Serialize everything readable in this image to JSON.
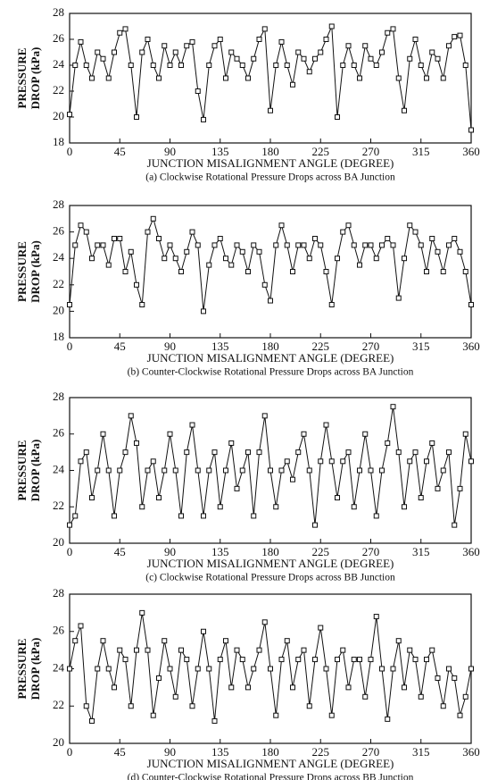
{
  "chart_data": [
    {
      "type": "line",
      "xlabel": "JUNCTION MISALIGNMENT ANGLE (DEGREE)",
      "ylabel": [
        "PRESSURE",
        "DROP (kPa)"
      ],
      "caption": "(a) Clockwise Rotational Pressure Drops across BA Junction",
      "xlim": [
        0,
        360
      ],
      "xticks": [
        0,
        45,
        90,
        135,
        180,
        225,
        270,
        315,
        360
      ],
      "ylim": [
        18,
        28
      ],
      "yticks": [
        18,
        20,
        22,
        24,
        26,
        28
      ],
      "x": [
        0,
        5,
        10,
        15,
        20,
        25,
        30,
        35,
        40,
        45,
        50,
        55,
        60,
        65,
        70,
        75,
        80,
        85,
        90,
        95,
        100,
        105,
        110,
        115,
        120,
        125,
        130,
        135,
        140,
        145,
        150,
        155,
        160,
        165,
        170,
        175,
        180,
        185,
        190,
        195,
        200,
        205,
        210,
        215,
        220,
        225,
        230,
        235,
        240,
        245,
        250,
        255,
        260,
        265,
        270,
        275,
        280,
        285,
        290,
        295,
        300,
        305,
        310,
        315,
        320,
        325,
        330,
        335,
        340,
        345,
        350,
        355,
        360
      ],
      "values": [
        20.2,
        24,
        25.8,
        24,
        23,
        25,
        24.5,
        23,
        25,
        26.5,
        26.8,
        24,
        20,
        25,
        26,
        24,
        23,
        25.5,
        24,
        25,
        24,
        25.5,
        25.8,
        22,
        19.8,
        24,
        25.5,
        26,
        23,
        25,
        24.5,
        24,
        23,
        24.5,
        26,
        26.8,
        20.5,
        24,
        25.8,
        24,
        22.5,
        25,
        24.5,
        23.5,
        24.5,
        25,
        26,
        27,
        20,
        24,
        25.5,
        24,
        23,
        25.5,
        24.5,
        24,
        25,
        26.5,
        26.8,
        23,
        20.5,
        24.5,
        26,
        24,
        23,
        25,
        24.5,
        23,
        25.5,
        26.2,
        26.3,
        24,
        19
      ],
      "color": "#111111"
    },
    {
      "type": "line",
      "xlabel": "JUNCTION MISALIGNMENT ANGLE (DEGREE)",
      "ylabel": [
        "PRESSURE",
        "DROP (kPa)"
      ],
      "caption": "(b) Counter-Clockwise  Rotational Pressure Drops across BA Junction",
      "xlim": [
        0,
        360
      ],
      "xticks": [
        0,
        45,
        90,
        135,
        180,
        225,
        270,
        315,
        360
      ],
      "ylim": [
        18,
        28
      ],
      "yticks": [
        18,
        20,
        22,
        24,
        26,
        28
      ],
      "x": [
        0,
        5,
        10,
        15,
        20,
        25,
        30,
        35,
        40,
        45,
        50,
        55,
        60,
        65,
        70,
        75,
        80,
        85,
        90,
        95,
        100,
        105,
        110,
        115,
        120,
        125,
        130,
        135,
        140,
        145,
        150,
        155,
        160,
        165,
        170,
        175,
        180,
        185,
        190,
        195,
        200,
        205,
        210,
        215,
        220,
        225,
        230,
        235,
        240,
        245,
        250,
        255,
        260,
        265,
        270,
        275,
        280,
        285,
        290,
        295,
        300,
        305,
        310,
        315,
        320,
        325,
        330,
        335,
        340,
        345,
        350,
        355,
        360
      ],
      "values": [
        20.5,
        25,
        26.5,
        26,
        24,
        25,
        25,
        23.5,
        25.5,
        25.5,
        23,
        24.5,
        22,
        20.5,
        26,
        27,
        25.5,
        24,
        25,
        24,
        23,
        24.5,
        26,
        25,
        20,
        23.5,
        25,
        25.5,
        24,
        23.5,
        25,
        24.5,
        23,
        25,
        24.5,
        22,
        20.8,
        25,
        26.5,
        25,
        23,
        25,
        25,
        24,
        25.5,
        25,
        23,
        20.5,
        24,
        26,
        26.5,
        25,
        23.5,
        25,
        25,
        24,
        25,
        25.5,
        25,
        21,
        24,
        26.5,
        26,
        25,
        23,
        25.5,
        24.5,
        23,
        25,
        25.5,
        24.5,
        23,
        20.5
      ],
      "color": "#111111"
    },
    {
      "type": "line",
      "xlabel": "JUNCTION MISALIGNMENT ANGLE (DEGREE)",
      "ylabel": [
        "PRESSURE",
        "DROP (kPa)"
      ],
      "caption": "(c) Clockwise Rotational Pressure Drops across BB Junction",
      "xlim": [
        0,
        360
      ],
      "xticks": [
        0,
        45,
        90,
        135,
        180,
        225,
        270,
        315,
        360
      ],
      "ylim": [
        20,
        28
      ],
      "yticks": [
        20,
        22,
        24,
        26,
        28
      ],
      "x": [
        0,
        5,
        10,
        15,
        20,
        25,
        30,
        35,
        40,
        45,
        50,
        55,
        60,
        65,
        70,
        75,
        80,
        85,
        90,
        95,
        100,
        105,
        110,
        115,
        120,
        125,
        130,
        135,
        140,
        145,
        150,
        155,
        160,
        165,
        170,
        175,
        180,
        185,
        190,
        195,
        200,
        205,
        210,
        215,
        220,
        225,
        230,
        235,
        240,
        245,
        250,
        255,
        260,
        265,
        270,
        275,
        280,
        285,
        290,
        295,
        300,
        305,
        310,
        315,
        320,
        325,
        330,
        335,
        340,
        345,
        350,
        355,
        360
      ],
      "values": [
        21,
        21.5,
        24.5,
        25,
        22.5,
        24,
        26,
        24,
        21.5,
        24,
        25,
        27,
        25.5,
        22,
        24,
        24.5,
        22.5,
        24,
        26,
        24,
        21.5,
        25,
        26.5,
        24,
        21.5,
        24,
        25,
        22,
        24,
        25.5,
        23,
        24,
        25,
        21.5,
        25,
        27,
        24,
        22,
        24,
        24.5,
        23.5,
        25,
        26,
        24,
        21,
        24.5,
        26.5,
        24.5,
        22.5,
        24.5,
        25,
        22,
        24,
        26,
        24,
        21.5,
        24,
        25.5,
        27.5,
        25,
        22,
        24.5,
        25,
        22.5,
        24.5,
        25.5,
        23,
        24,
        25,
        21,
        23,
        26,
        24.5
      ],
      "color": "#111111"
    },
    {
      "type": "line",
      "xlabel": "JUNCTION MISALIGNMENT ANGLE (DEGREE)",
      "ylabel": [
        "PRESSURE",
        "DROP (kPa)"
      ],
      "caption": "(d) Counter-Clockwise Rotational Pressure Drops across BB Junction",
      "xlim": [
        0,
        360
      ],
      "xticks": [
        0,
        45,
        90,
        135,
        180,
        225,
        270,
        315,
        360
      ],
      "ylim": [
        20,
        28
      ],
      "yticks": [
        20,
        22,
        24,
        26,
        28
      ],
      "x": [
        0,
        5,
        10,
        15,
        20,
        25,
        30,
        35,
        40,
        45,
        50,
        55,
        60,
        65,
        70,
        75,
        80,
        85,
        90,
        95,
        100,
        105,
        110,
        115,
        120,
        125,
        130,
        135,
        140,
        145,
        150,
        155,
        160,
        165,
        170,
        175,
        180,
        185,
        190,
        195,
        200,
        205,
        210,
        215,
        220,
        225,
        230,
        235,
        240,
        245,
        250,
        255,
        260,
        265,
        270,
        275,
        280,
        285,
        290,
        295,
        300,
        305,
        310,
        315,
        320,
        325,
        330,
        335,
        340,
        345,
        350,
        355,
        360
      ],
      "values": [
        24,
        25.5,
        26.3,
        22,
        21.2,
        24,
        25.5,
        24,
        23,
        25,
        24.5,
        22,
        25,
        27,
        25,
        21.5,
        23.5,
        25.5,
        24,
        22.5,
        25,
        24.5,
        22,
        24,
        26,
        24,
        21.2,
        24.5,
        25.5,
        23,
        25,
        24.5,
        23,
        24,
        25,
        26.5,
        24,
        21.5,
        24.5,
        25.5,
        23,
        24.5,
        25,
        22,
        24.5,
        26.2,
        24,
        21.5,
        24.5,
        25,
        23,
        24.5,
        24.5,
        22.5,
        24.5,
        26.8,
        24,
        21.3,
        24,
        25.5,
        23,
        25,
        24.5,
        22.5,
        24.5,
        25,
        23.5,
        22,
        24,
        23.5,
        21.5,
        22.5,
        24
      ],
      "color": "#111111"
    }
  ]
}
